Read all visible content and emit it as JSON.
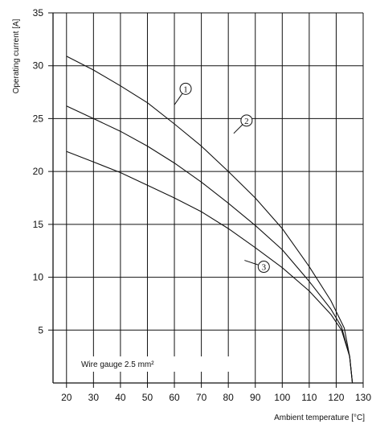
{
  "chart_data": {
    "type": "line",
    "title": "",
    "xlabel": "Ambient temperature [°C]",
    "ylabel": "Operating current [A]",
    "xlim": [
      15,
      130
    ],
    "ylim": [
      0,
      35
    ],
    "x_ticks": [
      20,
      30,
      40,
      50,
      60,
      70,
      80,
      90,
      100,
      110,
      120,
      130
    ],
    "y_ticks": [
      5,
      10,
      15,
      20,
      25,
      30,
      35
    ],
    "grid": true,
    "note": "Wire gauge 2.5 mm²",
    "series": [
      {
        "name": "1",
        "x": [
          20,
          30,
          40,
          50,
          60,
          70,
          80,
          90,
          100,
          110,
          118,
          123,
          125,
          126
        ],
        "y": [
          30.9,
          29.6,
          28.1,
          26.5,
          24.5,
          22.4,
          20.0,
          17.5,
          14.6,
          11.0,
          7.8,
          5.2,
          2.5,
          0
        ]
      },
      {
        "name": "2",
        "x": [
          20,
          30,
          40,
          50,
          60,
          70,
          80,
          90,
          100,
          110,
          118,
          122,
          125,
          126
        ],
        "y": [
          26.2,
          25.0,
          23.8,
          22.4,
          20.8,
          19.0,
          17.0,
          14.9,
          12.6,
          9.6,
          7.0,
          5.3,
          2.5,
          0
        ]
      },
      {
        "name": "3",
        "x": [
          20,
          30,
          40,
          50,
          60,
          70,
          80,
          90,
          100,
          110,
          118,
          122,
          125,
          126
        ],
        "y": [
          21.9,
          20.9,
          19.9,
          18.7,
          17.5,
          16.2,
          14.6,
          12.8,
          10.9,
          8.7,
          6.5,
          5.0,
          2.5,
          0
        ]
      }
    ],
    "callouts": [
      {
        "label": "1",
        "x": 60,
        "y": 26.3
      },
      {
        "label": "2",
        "x": 82,
        "y": 23.6
      },
      {
        "label": "3",
        "x": 86,
        "y": 11.6
      }
    ],
    "line_color": "#111111",
    "grid_color": "#111111"
  }
}
